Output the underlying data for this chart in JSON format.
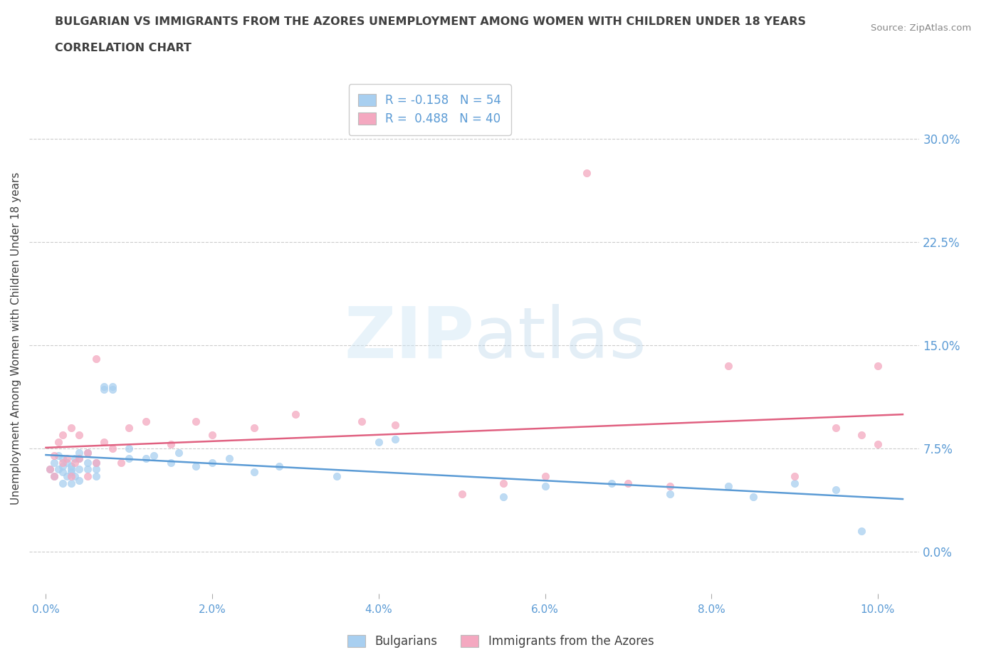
{
  "title_line1": "BULGARIAN VS IMMIGRANTS FROM THE AZORES UNEMPLOYMENT AMONG WOMEN WITH CHILDREN UNDER 18 YEARS",
  "title_line2": "CORRELATION CHART",
  "source": "Source: ZipAtlas.com",
  "ylabel": "Unemployment Among Women with Children Under 18 years",
  "xlim": [
    -0.002,
    0.105
  ],
  "ylim": [
    -0.03,
    0.34
  ],
  "ytick_vals": [
    0.0,
    0.075,
    0.15,
    0.225,
    0.3
  ],
  "ytick_labels": [
    "0.0%",
    "7.5%",
    "15.0%",
    "22.5%",
    "30.0%"
  ],
  "xtick_vals": [
    0.0,
    0.02,
    0.04,
    0.06,
    0.08,
    0.1
  ],
  "xtick_labels": [
    "0.0%",
    "2.0%",
    "4.0%",
    "6.0%",
    "8.0%",
    "10.0%"
  ],
  "grid_color": "#cccccc",
  "background_color": "#ffffff",
  "legend_r1": "R = -0.158",
  "legend_n1": "N = 54",
  "legend_r2": "R =  0.488",
  "legend_n2": "N = 40",
  "color_blue": "#a8cff0",
  "color_pink": "#f4a8c0",
  "line_color_blue": "#5b9bd5",
  "line_color_pink": "#e06080",
  "title_color": "#404040",
  "axis_color": "#5b9bd5",
  "bulgarians_x": [
    0.0005,
    0.001,
    0.001,
    0.0015,
    0.0015,
    0.002,
    0.002,
    0.002,
    0.002,
    0.0025,
    0.0025,
    0.003,
    0.003,
    0.003,
    0.003,
    0.0035,
    0.0035,
    0.004,
    0.004,
    0.004,
    0.004,
    0.005,
    0.005,
    0.005,
    0.006,
    0.006,
    0.006,
    0.007,
    0.007,
    0.008,
    0.008,
    0.01,
    0.01,
    0.012,
    0.013,
    0.015,
    0.016,
    0.018,
    0.02,
    0.022,
    0.025,
    0.028,
    0.035,
    0.04,
    0.042,
    0.055,
    0.06,
    0.068,
    0.075,
    0.082,
    0.085,
    0.09,
    0.095,
    0.098
  ],
  "bulgarians_y": [
    0.06,
    0.055,
    0.065,
    0.06,
    0.07,
    0.058,
    0.062,
    0.068,
    0.05,
    0.055,
    0.065,
    0.058,
    0.062,
    0.05,
    0.06,
    0.055,
    0.068,
    0.06,
    0.052,
    0.068,
    0.072,
    0.065,
    0.06,
    0.072,
    0.065,
    0.055,
    0.06,
    0.118,
    0.12,
    0.12,
    0.118,
    0.068,
    0.075,
    0.068,
    0.07,
    0.065,
    0.072,
    0.062,
    0.065,
    0.068,
    0.058,
    0.062,
    0.055,
    0.08,
    0.082,
    0.04,
    0.048,
    0.05,
    0.042,
    0.048,
    0.04,
    0.05,
    0.045,
    0.015
  ],
  "azores_x": [
    0.0005,
    0.001,
    0.001,
    0.0015,
    0.002,
    0.002,
    0.0025,
    0.003,
    0.003,
    0.0035,
    0.004,
    0.004,
    0.005,
    0.005,
    0.006,
    0.006,
    0.007,
    0.008,
    0.009,
    0.01,
    0.012,
    0.015,
    0.018,
    0.02,
    0.025,
    0.03,
    0.038,
    0.042,
    0.05,
    0.055,
    0.06,
    0.065,
    0.07,
    0.075,
    0.082,
    0.09,
    0.095,
    0.098,
    0.1,
    0.1
  ],
  "azores_y": [
    0.06,
    0.055,
    0.07,
    0.08,
    0.065,
    0.085,
    0.068,
    0.055,
    0.09,
    0.065,
    0.068,
    0.085,
    0.055,
    0.072,
    0.065,
    0.14,
    0.08,
    0.075,
    0.065,
    0.09,
    0.095,
    0.078,
    0.095,
    0.085,
    0.09,
    0.1,
    0.095,
    0.092,
    0.042,
    0.05,
    0.055,
    0.275,
    0.05,
    0.048,
    0.135,
    0.055,
    0.09,
    0.085,
    0.078,
    0.135
  ]
}
